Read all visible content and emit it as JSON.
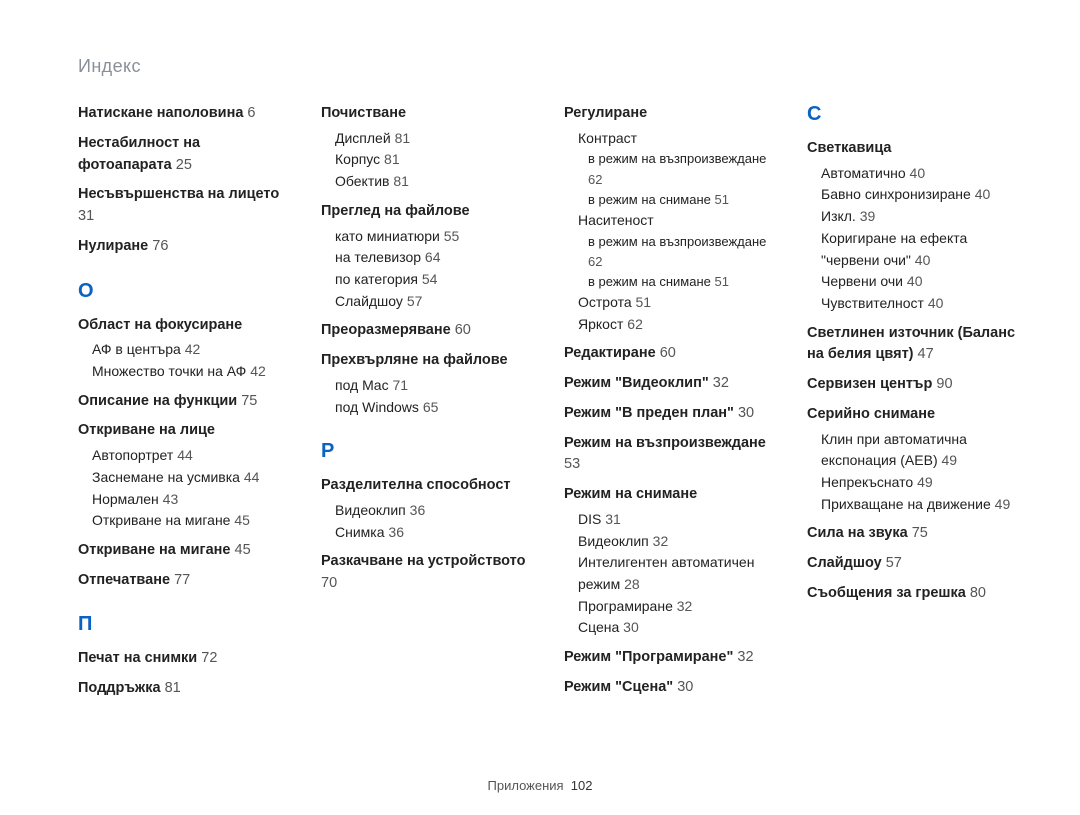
{
  "page_header": "Индекс",
  "footer_label": "Приложения",
  "footer_page": "102",
  "colors": {
    "header_color": "#8a8f99",
    "letter_color": "#0a63c2",
    "text_color": "#222222",
    "page_color": "#555555",
    "background": "#ffffff"
  },
  "typography": {
    "header_fontsize_pt": 14,
    "letter_fontsize_pt": 15,
    "entry_fontsize_pt": 11,
    "sub_fontsize_pt": 10.5,
    "footer_fontsize_pt": 10,
    "font_family": "Arial"
  },
  "entries": [
    {
      "type": "bold",
      "text": "Натискане наполовина",
      "page": "6"
    },
    {
      "type": "bold",
      "text": "Нестабилност на фотоапарата",
      "page": "25"
    },
    {
      "type": "bold",
      "text": "Несъвършенства на лицето",
      "page": "31"
    },
    {
      "type": "bold",
      "text": "Нулиране",
      "page": "76"
    },
    {
      "type": "letter",
      "text": "О"
    },
    {
      "type": "bold",
      "text": "Област на фокусиране",
      "subs": [
        {
          "text": "АФ в центъра",
          "page": "42"
        },
        {
          "text": "Множество точки на АФ",
          "page": "42"
        }
      ]
    },
    {
      "type": "bold",
      "text": "Описание на функции",
      "page": "75"
    },
    {
      "type": "bold",
      "text": "Откриване на лице",
      "subs": [
        {
          "text": "Автопортрет",
          "page": "44"
        },
        {
          "text": "Заснемане на усмивка",
          "page": "44"
        },
        {
          "text": "Нормален",
          "page": "43"
        },
        {
          "text": "Откриване на мигане",
          "page": "45"
        }
      ]
    },
    {
      "type": "bold",
      "text": "Откриване на мигане",
      "page": "45"
    },
    {
      "type": "bold",
      "text": "Отпечатване",
      "page": "77"
    },
    {
      "type": "letter",
      "text": "П"
    },
    {
      "type": "bold",
      "text": "Печат на снимки",
      "page": "72"
    },
    {
      "type": "bold",
      "text": "Поддръжка",
      "page": "81"
    },
    {
      "type": "bold",
      "text": "Почистване",
      "subs": [
        {
          "text": "Дисплей",
          "page": "81"
        },
        {
          "text": "Корпус",
          "page": "81"
        },
        {
          "text": "Обектив",
          "page": "81"
        }
      ]
    },
    {
      "type": "bold",
      "text": "Преглед на файлове",
      "subs": [
        {
          "text": "като миниатюри",
          "page": "55"
        },
        {
          "text": "на телевизор",
          "page": "64"
        },
        {
          "text": "по категория",
          "page": "54"
        },
        {
          "text": "Слайдшоу",
          "page": "57"
        }
      ]
    },
    {
      "type": "bold",
      "text": "Преоразмеряване",
      "page": "60"
    },
    {
      "type": "bold",
      "text": "Прехвърляне на файлове",
      "subs": [
        {
          "text": "под Mac",
          "page": "71"
        },
        {
          "text": "под Windows",
          "page": "65"
        }
      ]
    },
    {
      "type": "letter",
      "text": "Р"
    },
    {
      "type": "bold",
      "text": "Разделителна способност",
      "subs": [
        {
          "text": "Видеоклип",
          "page": "36"
        },
        {
          "text": "Снимка",
          "page": "36"
        }
      ]
    },
    {
      "type": "bold",
      "text": "Разкачване на устройството",
      "page": "70"
    },
    {
      "type": "bold",
      "text": "Регулиране",
      "subs": [
        {
          "text": "Контраст"
        },
        {
          "text": "в режим на възпроизвеждане",
          "page": "62",
          "deep": true
        },
        {
          "text": "в режим на снимане",
          "page": "51",
          "deep": true
        },
        {
          "text": "Наситеност"
        },
        {
          "text": "в режим на възпроизвеждане",
          "page": "62",
          "deep": true
        },
        {
          "text": "в режим на снимане",
          "page": "51",
          "deep": true
        },
        {
          "text": "Острота",
          "page": "51"
        },
        {
          "text": "Яркост",
          "page": "62"
        }
      ]
    },
    {
      "type": "bold",
      "text": "Редактиране",
      "page": "60"
    },
    {
      "type": "bold",
      "text": "Режим \"Видеоклип\"",
      "page": "32"
    },
    {
      "type": "bold",
      "text": "Режим \"В преден план\"",
      "page": "30"
    },
    {
      "type": "bold",
      "text": "Режим на възпроизвеждане",
      "page": "53"
    },
    {
      "type": "bold",
      "text": "Режим на снимане",
      "subs": [
        {
          "text": "DIS",
          "page": "31"
        },
        {
          "text": "Видеоклип",
          "page": "32"
        },
        {
          "text": "Интелигентен автоматичен режим",
          "page": "28"
        },
        {
          "text": "Програмиране",
          "page": "32"
        },
        {
          "text": "Сцена",
          "page": "30"
        }
      ]
    },
    {
      "type": "bold",
      "text": "Режим \"Програмиране\"",
      "page": "32"
    },
    {
      "type": "bold",
      "text": "Режим \"Сцена\"",
      "page": "30"
    },
    {
      "type": "letter",
      "text": "С"
    },
    {
      "type": "bold",
      "text": "Светкавица",
      "subs": [
        {
          "text": "Автоматично",
          "page": "40"
        },
        {
          "text": "Бавно синхронизиране",
          "page": "40"
        },
        {
          "text": "Изкл.",
          "page": "39"
        },
        {
          "text": "Коригиране на ефекта \"червени очи\"",
          "page": "40"
        },
        {
          "text": "Червени очи",
          "page": "40"
        },
        {
          "text": "Чувствителност",
          "page": "40"
        }
      ]
    },
    {
      "type": "bold",
      "text": "Светлинен източник (Баланс на белия цвят)",
      "page": "47"
    },
    {
      "type": "bold",
      "text": "Сервизен център",
      "page": "90"
    },
    {
      "type": "bold",
      "text": "Серийно снимане",
      "subs": [
        {
          "text": "Клин при автоматична експонация (AEB)",
          "page": "49"
        },
        {
          "text": "Непрекъснато",
          "page": "49"
        },
        {
          "text": "Прихващане на движение",
          "page": "49"
        }
      ]
    },
    {
      "type": "bold",
      "text": "Сила на звука",
      "page": "75"
    },
    {
      "type": "bold",
      "text": "Слайдшоу",
      "page": "57"
    },
    {
      "type": "bold",
      "text": "Съобщения за грешка",
      "page": "80"
    }
  ]
}
